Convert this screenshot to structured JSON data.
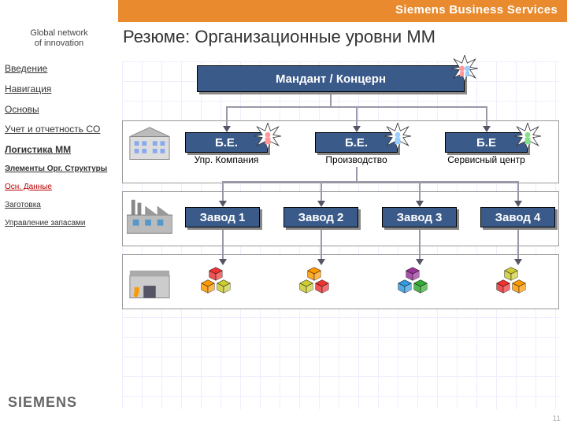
{
  "brand": {
    "bar_color": "#e98a2e",
    "right_text": "Siemens Business Services",
    "tagline_l1": "Global network",
    "tagline_l2": "of innovation",
    "logo": "SIEMENS"
  },
  "title": "Резюме: Организационные уровни MM",
  "nav": {
    "i0": "Введение",
    "i1": "Навигация",
    "i2": "Основы",
    "i3": "Учет и отчетность CO",
    "i4": "Логистика MM",
    "i5": "Элементы Орг. Структуры",
    "i6": "Осн. Данные",
    "i7": "Заготовка",
    "i8": "Управление запасами"
  },
  "diagram": {
    "top": "Мандант / Концерн",
    "be1": "Б.Е.",
    "be1_sub": "Упр. Компания",
    "be2": "Б.Е.",
    "be2_sub": "Производство",
    "be3": "Б.Е",
    "be3_sub": "Сервисный центр",
    "p1": "Завод 1",
    "p2": "Завод 2",
    "p3": "Завод 3",
    "p4": "Завод 4",
    "box_bg": "#3a5a8a",
    "sun_fill": "#fff",
    "sun_stroke": "#333",
    "cube_colors": [
      "#e33",
      "#3a3",
      "#f90",
      "#939",
      "#cc3",
      "#39d"
    ]
  },
  "page": "11"
}
